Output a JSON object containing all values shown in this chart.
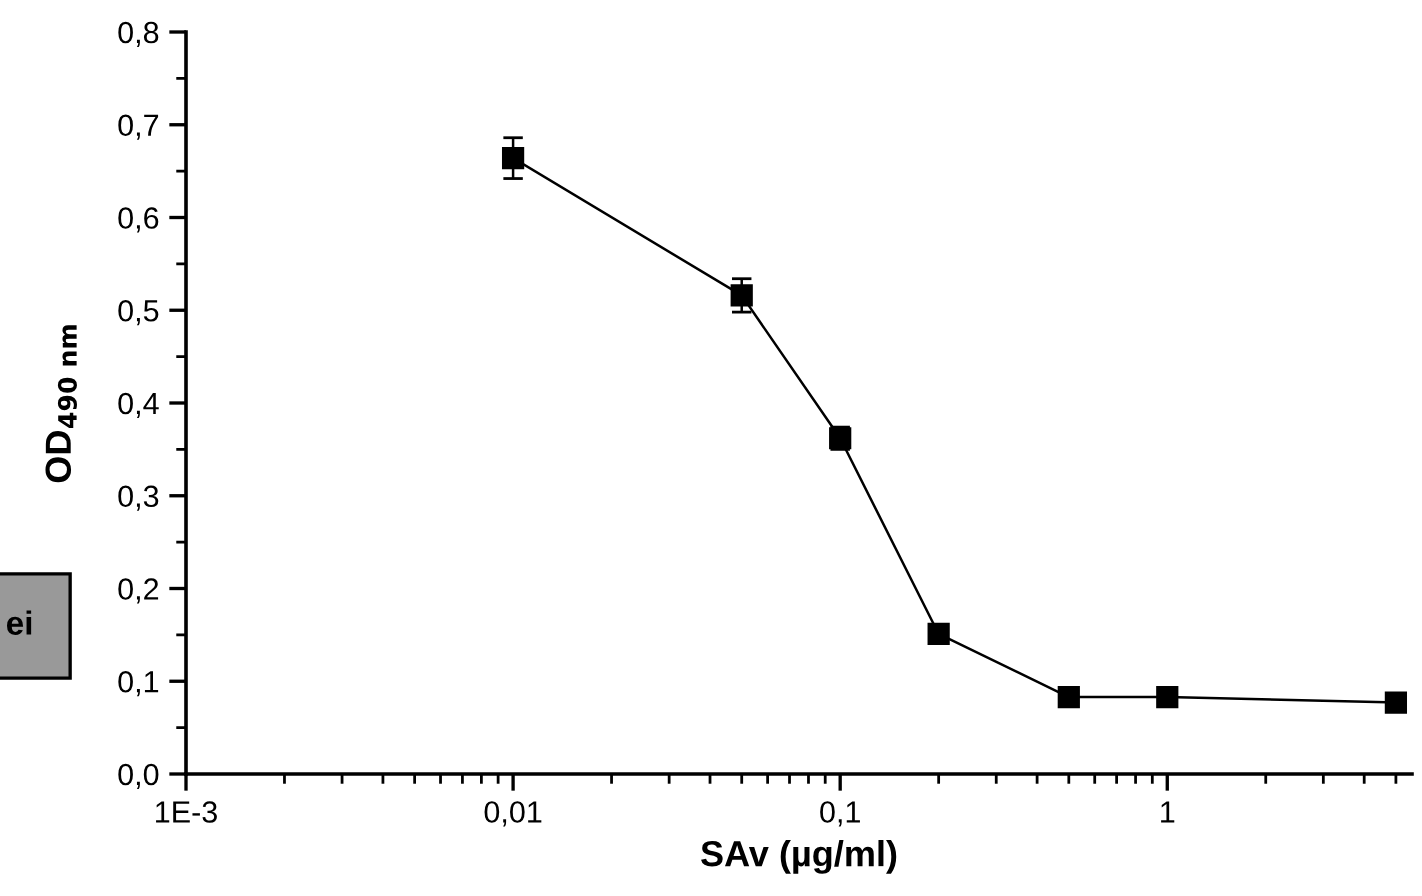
{
  "chart_data": {
    "type": "line",
    "xlabel": "SAv (µg/ml)",
    "ylabel": "OD$_{490 nm}$",
    "log": "x",
    "marker": "square",
    "line_style": "solid",
    "x": [
      0.01,
      0.05,
      0.1,
      0.2,
      0.5,
      1,
      5
    ],
    "series": [
      {
        "color": "#000000",
        "values": [
          0.664,
          0.516,
          0.362,
          0.151,
          0.083,
          0.083,
          0.077
        ],
        "errors": [
          0.022,
          0.018,
          0.012,
          null,
          null,
          null,
          null
        ]
      }
    ],
    "xlim": [
      0.001,
      5.6
    ],
    "ylim": [
      0,
      0.8
    ],
    "xticks": [
      {
        "value": 0.001,
        "label": "1E-3"
      },
      {
        "value": 0.01,
        "label": "0,01"
      },
      {
        "value": 0.1,
        "label": "0,1"
      },
      {
        "value": 1,
        "label": "1"
      }
    ],
    "yticks": [
      {
        "value": 0,
        "label": "0,0"
      },
      {
        "value": 0.1,
        "label": "0,1"
      },
      {
        "value": 0.2,
        "label": "0,2"
      },
      {
        "value": 0.3,
        "label": "0,3"
      },
      {
        "value": 0.4,
        "label": "0,4"
      },
      {
        "value": 0.5,
        "label": "0,5"
      },
      {
        "value": 0.6,
        "label": "0,6"
      },
      {
        "value": 0.7,
        "label": "0,7"
      },
      {
        "value": 0.8,
        "label": "0,8"
      }
    ],
    "annotations": [
      "ei"
    ]
  }
}
